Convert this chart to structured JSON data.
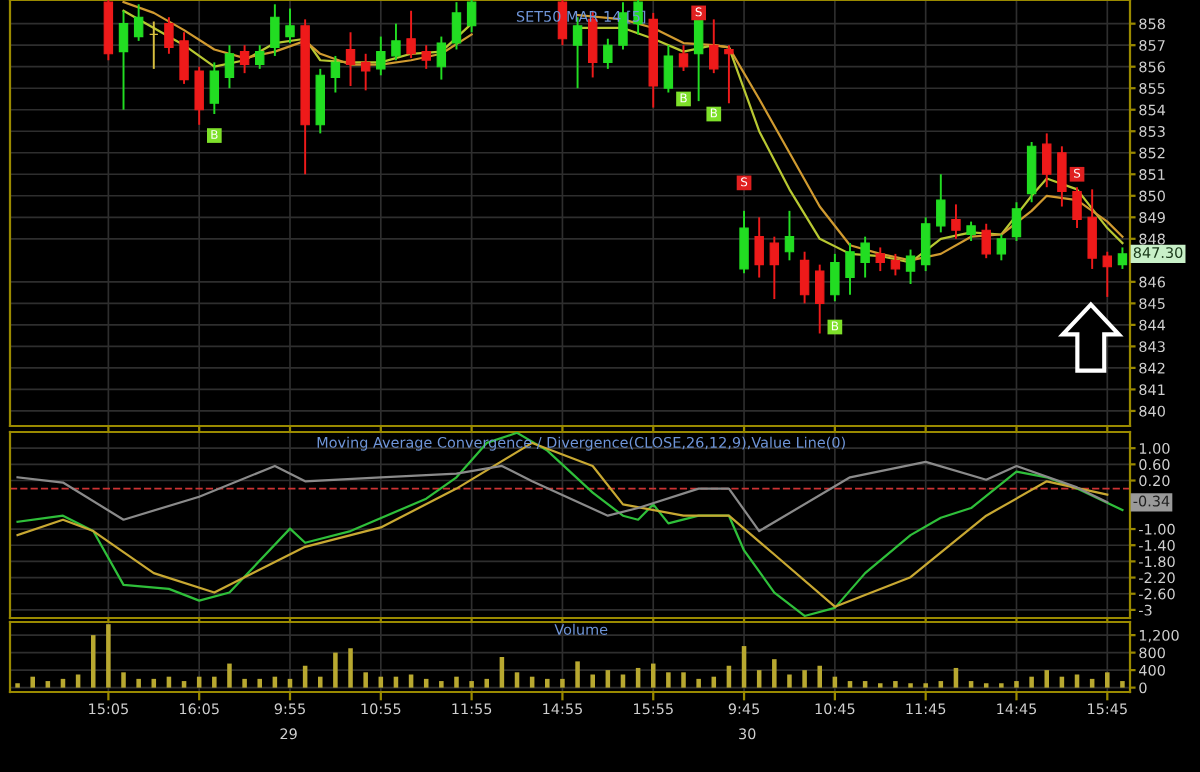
{
  "chart_data": [
    {
      "type": "candlestick",
      "title": "SET50 MAR 14 [5]",
      "categories": [
        null,
        null,
        null,
        null,
        null,
        null,
        null,
        null,
        null,
        null,
        null,
        null,
        null,
        null,
        null,
        null,
        null,
        null,
        null,
        null,
        null,
        null,
        null,
        null,
        null,
        null,
        null,
        null,
        null,
        null,
        null,
        null,
        null,
        null,
        null,
        null,
        null,
        null,
        null,
        null,
        null,
        null,
        null,
        null,
        null,
        null,
        null,
        null,
        null,
        null,
        null,
        null,
        null,
        null,
        null,
        null,
        null,
        null,
        null,
        null,
        null,
        null,
        null,
        null,
        null,
        null,
        null,
        null,
        null,
        null,
        null,
        null,
        null,
        null
      ],
      "ohlc": [
        null,
        null,
        null,
        null,
        null,
        null,
        [
          859.0,
          859.1,
          856.3,
          856.6
        ],
        [
          856.7,
          858.6,
          854.0,
          858.0
        ],
        [
          857.4,
          858.9,
          857.2,
          858.3
        ],
        [
          857.5,
          858.1,
          855.9,
          857.5
        ],
        [
          858.0,
          858.3,
          856.6,
          856.9
        ],
        [
          857.2,
          857.6,
          855.2,
          855.4
        ],
        [
          855.8,
          856.0,
          853.3,
          854.0
        ],
        [
          854.3,
          856.2,
          853.8,
          855.8
        ],
        [
          855.5,
          857.0,
          855.0,
          856.6
        ],
        [
          856.7,
          857.0,
          855.7,
          856.1
        ],
        [
          856.1,
          857.0,
          855.9,
          856.7
        ],
        [
          856.9,
          858.9,
          856.5,
          858.3
        ],
        [
          857.4,
          858.7,
          857.1,
          857.9
        ],
        [
          857.9,
          858.2,
          851.0,
          853.3
        ],
        [
          853.3,
          855.9,
          852.9,
          855.6
        ],
        [
          855.5,
          856.5,
          854.8,
          856.2
        ],
        [
          856.8,
          857.6,
          855.1,
          856.1
        ],
        [
          856.2,
          856.6,
          854.9,
          855.8
        ],
        [
          855.9,
          857.4,
          855.6,
          856.7
        ],
        [
          856.5,
          858.0,
          856.3,
          857.2
        ],
        [
          857.3,
          858.6,
          856.4,
          856.6
        ],
        [
          856.7,
          857.0,
          855.9,
          856.3
        ],
        [
          856.0,
          857.4,
          855.4,
          857.1
        ],
        [
          857.1,
          859.0,
          856.8,
          858.5
        ],
        [
          857.9,
          859.1,
          857.6,
          859.0
        ],
        null,
        null,
        null,
        null,
        null,
        [
          859.0,
          859.1,
          857.0,
          857.3
        ],
        [
          857.0,
          858.3,
          855.0,
          857.9
        ],
        [
          858.2,
          858.6,
          855.5,
          856.2
        ],
        [
          856.2,
          857.3,
          855.9,
          857.0
        ],
        [
          857.0,
          859.0,
          856.8,
          858.5
        ],
        [
          858.0,
          859.1,
          857.5,
          859.0
        ],
        [
          858.2,
          858.5,
          854.1,
          855.1
        ],
        [
          855.0,
          857.0,
          854.8,
          856.5
        ],
        [
          856.6,
          857.0,
          855.8,
          856.0
        ],
        [
          856.6,
          858.3,
          854.4,
          858.2
        ],
        [
          857.0,
          858.2,
          855.7,
          855.9
        ],
        [
          856.8,
          857.0,
          854.3,
          856.6
        ],
        [
          846.6,
          849.3,
          846.4,
          848.5
        ],
        [
          848.1,
          849.0,
          846.2,
          846.8
        ],
        [
          847.8,
          848.1,
          845.2,
          846.8
        ],
        [
          847.4,
          849.3,
          847.0,
          848.1
        ],
        [
          847.0,
          847.4,
          845.0,
          845.4
        ],
        [
          846.5,
          846.8,
          843.6,
          845.0
        ],
        [
          845.4,
          847.3,
          845.1,
          846.9
        ],
        [
          846.2,
          847.8,
          845.4,
          847.4
        ],
        [
          846.9,
          848.1,
          846.2,
          847.8
        ],
        [
          847.3,
          847.6,
          846.5,
          846.9
        ],
        [
          847.0,
          847.3,
          846.3,
          846.6
        ],
        [
          846.5,
          847.5,
          845.9,
          847.2
        ],
        [
          846.8,
          849.0,
          846.5,
          848.7
        ],
        [
          848.6,
          851.0,
          848.3,
          849.8
        ],
        [
          848.9,
          849.6,
          848.0,
          848.4
        ],
        [
          848.2,
          848.8,
          847.9,
          848.6
        ],
        [
          848.4,
          848.7,
          847.1,
          847.3
        ],
        [
          847.3,
          848.2,
          847.0,
          848.0
        ],
        [
          848.1,
          849.7,
          847.9,
          849.4
        ],
        [
          850.1,
          852.5,
          849.7,
          852.3
        ],
        [
          852.4,
          852.9,
          850.4,
          851.0
        ],
        [
          852.0,
          852.3,
          849.5,
          850.2
        ],
        [
          850.2,
          850.4,
          848.5,
          848.9
        ],
        [
          849.0,
          850.3,
          846.6,
          847.1
        ],
        [
          847.2,
          847.4,
          845.3,
          846.7
        ],
        [
          846.8,
          847.6,
          846.6,
          847.3
        ]
      ],
      "series": [
        {
          "type": "line",
          "color": "#b8c832",
          "values": [
            null,
            null,
            null,
            null,
            null,
            null,
            null,
            858.6,
            null,
            857.8,
            null,
            857.0,
            null,
            856.0,
            null,
            856.3,
            null,
            857.1,
            null,
            857.3,
            856.3,
            null,
            856.2,
            null,
            856.2,
            null,
            856.6,
            null,
            856.7,
            null,
            858.0,
            null,
            null,
            null,
            null,
            null,
            null,
            857.8,
            null,
            null,
            857.8,
            null,
            857.3,
            null,
            856.7,
            null,
            857.0,
            856.9,
            null,
            853.0,
            null,
            850.3,
            null,
            848.0,
            null,
            847.3,
            null,
            847.2,
            null,
            846.9,
            null,
            848.0,
            null,
            848.3,
            null,
            848.2,
            null,
            850.0,
            850.8,
            null,
            850.3,
            null,
            848.5,
            847.8
          ]
        },
        {
          "type": "line",
          "color": "#d09a30",
          "values": [
            null,
            null,
            null,
            null,
            null,
            null,
            null,
            859.0,
            null,
            858.5,
            null,
            857.7,
            null,
            856.8,
            null,
            856.4,
            null,
            856.7,
            null,
            857.2,
            856.6,
            null,
            856.1,
            null,
            856.1,
            null,
            856.3,
            null,
            856.6,
            null,
            857.5,
            null,
            null,
            null,
            null,
            null,
            null,
            858.4,
            null,
            null,
            858.2,
            null,
            857.8,
            null,
            857.1,
            null,
            857.0,
            856.9,
            null,
            854.5,
            null,
            852.0,
            null,
            849.5,
            null,
            847.7,
            null,
            847.3,
            null,
            847.0,
            null,
            847.3,
            null,
            848.1,
            null,
            848.2,
            null,
            849.3,
            850.0,
            null,
            849.8,
            null,
            848.8,
            848.1
          ]
        },
        {
          "type": "scatter",
          "color": "#7ee02a",
          "marker": "square",
          "values": [
            null,
            null,
            null,
            null,
            null,
            null,
            null,
            null,
            null,
            null,
            null,
            null,
            null,
            852.8,
            null,
            null,
            null,
            null,
            null,
            null,
            null,
            null,
            null,
            null,
            null,
            null,
            null,
            null,
            null,
            null,
            null,
            null,
            null,
            null,
            null,
            null,
            null,
            null,
            null,
            null,
            null,
            null,
            null,
            null,
            854.5,
            null,
            853.8,
            null,
            null,
            null,
            null,
            null,
            null,
            null,
            843.9,
            null,
            null,
            null,
            null,
            null,
            null,
            null,
            null,
            null,
            null,
            null,
            null,
            null,
            null,
            null,
            null,
            null,
            null,
            null
          ],
          "value_labels": [
            null,
            null,
            null,
            null,
            null,
            null,
            null,
            null,
            null,
            null,
            null,
            null,
            null,
            "B",
            null,
            null,
            null,
            null,
            null,
            null,
            null,
            null,
            null,
            null,
            null,
            null,
            null,
            null,
            null,
            null,
            null,
            null,
            null,
            null,
            null,
            null,
            null,
            null,
            null,
            null,
            null,
            null,
            null,
            null,
            "B",
            null,
            "B",
            null,
            null,
            null,
            null,
            null,
            null,
            null,
            "B",
            null,
            null,
            null,
            null,
            null,
            null,
            null,
            null,
            null,
            null,
            null,
            null,
            null,
            null,
            null,
            null,
            null,
            null,
            null
          ]
        },
        {
          "type": "scatter",
          "color": "#e02020",
          "marker": "square",
          "values": [
            null,
            null,
            null,
            null,
            null,
            null,
            null,
            null,
            null,
            null,
            null,
            null,
            null,
            null,
            null,
            null,
            null,
            null,
            null,
            null,
            null,
            null,
            null,
            null,
            null,
            null,
            null,
            null,
            null,
            null,
            null,
            null,
            null,
            null,
            null,
            null,
            null,
            null,
            null,
            null,
            null,
            null,
            null,
            null,
            null,
            858.5,
            null,
            null,
            850.6,
            null,
            null,
            null,
            null,
            null,
            null,
            null,
            null,
            null,
            null,
            null,
            null,
            null,
            null,
            null,
            null,
            null,
            null,
            null,
            null,
            null,
            851.0,
            null,
            null,
            null
          ],
          "value_labels": [
            null,
            null,
            null,
            null,
            null,
            null,
            null,
            null,
            null,
            null,
            null,
            null,
            null,
            null,
            null,
            null,
            null,
            null,
            null,
            null,
            null,
            null,
            null,
            null,
            null,
            null,
            null,
            null,
            null,
            null,
            null,
            null,
            null,
            null,
            null,
            null,
            null,
            null,
            null,
            null,
            null,
            null,
            null,
            null,
            null,
            "S",
            null,
            null,
            "S",
            null,
            null,
            null,
            null,
            null,
            null,
            null,
            null,
            null,
            null,
            null,
            null,
            null,
            null,
            null,
            null,
            null,
            null,
            null,
            null,
            null,
            "S",
            null,
            null,
            null
          ]
        }
      ],
      "annotations": [
        "847.30"
      ],
      "ylim": [
        839.3,
        859.1
      ],
      "yticks": [
        840,
        841,
        842,
        843,
        844,
        845,
        846,
        848,
        849,
        850,
        851,
        852,
        853,
        854,
        855,
        856,
        857,
        858
      ],
      "grid": true,
      "tick_labels": "y"
    },
    {
      "type": "line",
      "title": "Moving Average Convergence / Divergence(CLOSE,26,12,9),Value Line(0)",
      "categories": [
        null,
        null,
        null,
        null,
        null,
        null,
        null,
        null,
        null,
        null,
        null,
        null,
        null,
        null,
        null,
        null,
        null,
        null,
        null,
        null,
        null,
        null,
        null,
        null,
        null,
        null,
        null,
        null,
        null,
        null,
        null,
        null,
        null,
        null,
        null,
        null,
        null,
        null,
        null,
        null,
        null,
        null,
        null,
        null,
        null,
        null,
        null,
        null,
        null,
        null,
        null,
        null,
        null,
        null,
        null,
        null,
        null,
        null,
        null,
        null,
        null,
        null,
        null,
        null,
        null,
        null,
        null,
        null,
        null,
        null,
        null,
        null,
        null,
        null
      ],
      "series": [
        {
          "color": "#2fbf3a",
          "values": [
            -0.82,
            null,
            null,
            -0.67,
            null,
            -1.05,
            null,
            -2.38,
            null,
            null,
            -2.48,
            null,
            -2.77,
            null,
            -2.57,
            null,
            null,
            null,
            -0.99,
            -1.34,
            null,
            null,
            -1.05,
            null,
            null,
            null,
            null,
            -0.25,
            null,
            0.28,
            null,
            1.13,
            null,
            1.38,
            null,
            0.94,
            null,
            null,
            -0.1,
            null,
            -0.67,
            -0.77,
            -0.39,
            -0.86,
            null,
            -0.67,
            null,
            -0.67,
            -1.53,
            null,
            -2.57,
            null,
            -3.15,
            null,
            -2.95,
            null,
            -2.09,
            null,
            null,
            -1.15,
            null,
            -0.72,
            null,
            -0.48,
            null,
            null,
            0.42,
            null,
            0.28,
            null,
            0.0,
            null,
            null,
            -0.53
          ]
        },
        {
          "color": "#c8a832",
          "values": [
            -1.15,
            null,
            null,
            -0.77,
            null,
            -1.05,
            null,
            null,
            null,
            -2.09,
            null,
            null,
            null,
            -2.57,
            null,
            null,
            null,
            null,
            null,
            -1.44,
            null,
            null,
            null,
            null,
            -0.96,
            null,
            null,
            null,
            null,
            0.0,
            null,
            null,
            null,
            null,
            1.13,
            null,
            null,
            null,
            0.56,
            null,
            -0.39,
            null,
            null,
            null,
            -0.67,
            null,
            null,
            -0.67,
            null,
            null,
            -1.63,
            null,
            null,
            null,
            -2.92,
            null,
            null,
            null,
            null,
            -2.19,
            null,
            null,
            null,
            null,
            -0.67,
            null,
            null,
            null,
            0.18,
            null,
            null,
            null,
            -0.15,
            null
          ]
        },
        {
          "color": "#8a8a8a",
          "values": [
            0.28,
            null,
            null,
            0.15,
            null,
            null,
            null,
            -0.77,
            null,
            null,
            null,
            null,
            -0.2,
            null,
            null,
            null,
            null,
            0.56,
            null,
            0.18,
            null,
            null,
            null,
            null,
            0.28,
            null,
            null,
            null,
            null,
            0.37,
            null,
            null,
            0.56,
            null,
            0.18,
            null,
            null,
            null,
            null,
            -0.67,
            null,
            -0.48,
            null,
            null,
            null,
            0.0,
            null,
            0.0,
            null,
            -1.05,
            null,
            null,
            null,
            null,
            null,
            0.28,
            null,
            null,
            null,
            null,
            0.66,
            null,
            null,
            null,
            0.22,
            null,
            0.56,
            null,
            null,
            null,
            0.03,
            null,
            -0.34,
            null
          ]
        }
      ],
      "ref_lines": [
        {
          "axis": "y",
          "value": 0,
          "color": "#cc3333",
          "line_style": "dashed"
        }
      ],
      "annotations": [
        "-0.34"
      ],
      "ylim": [
        -3.2,
        1.4
      ],
      "yticks": [
        {
          "value": 1,
          "label": "1.00"
        },
        {
          "value": 0.6,
          "label": "0.60"
        },
        {
          "value": 0.2,
          "label": "0.20"
        },
        {
          "value": -1,
          "label": "-1.00"
        },
        {
          "value": -1.4,
          "label": "-1.40"
        },
        {
          "value": -1.8,
          "label": "-1.80"
        },
        {
          "value": -2.2,
          "label": "-2.20"
        },
        {
          "value": -2.6,
          "label": "-2.60"
        },
        {
          "value": -3,
          "label": "-3"
        }
      ],
      "grid": true,
      "tick_labels": "y"
    },
    {
      "type": "bar",
      "title": "Volume",
      "color": "#b8a830",
      "categories": [
        null,
        null,
        null,
        null,
        null,
        null,
        "15:05",
        null,
        null,
        null,
        null,
        null,
        "16:05",
        null,
        null,
        null,
        null,
        null,
        "9:55",
        null,
        null,
        null,
        null,
        null,
        "10:55",
        null,
        null,
        null,
        null,
        null,
        "11:55",
        null,
        null,
        null,
        null,
        null,
        "14:55",
        null,
        null,
        null,
        null,
        null,
        "15:55",
        null,
        null,
        null,
        null,
        null,
        "9:45",
        null,
        null,
        null,
        null,
        null,
        "10:45",
        null,
        null,
        null,
        null,
        null,
        "11:45",
        null,
        null,
        null,
        null,
        null,
        "14:45",
        null,
        null,
        null,
        null,
        null,
        "15:45",
        null
      ],
      "values": [
        100,
        250,
        150,
        200,
        300,
        1200,
        1450,
        350,
        200,
        200,
        250,
        150,
        250,
        250,
        550,
        200,
        200,
        250,
        200,
        500,
        250,
        800,
        900,
        350,
        250,
        250,
        300,
        200,
        150,
        250,
        150,
        200,
        700,
        350,
        250,
        200,
        200,
        600,
        300,
        400,
        300,
        450,
        550,
        350,
        350,
        200,
        250,
        500,
        950,
        400,
        650,
        300,
        400,
        500,
        250,
        150,
        150,
        100,
        150,
        100,
        100,
        150,
        450,
        150,
        100,
        100,
        150,
        250,
        400,
        250,
        300,
        200,
        350,
        150
      ],
      "annotations": [
        "29",
        "30"
      ],
      "ylim": [
        -100,
        1500
      ],
      "yticks": [
        0,
        400,
        800,
        {
          "value": 1200,
          "label": "1,200"
        }
      ],
      "grid": true
    }
  ]
}
